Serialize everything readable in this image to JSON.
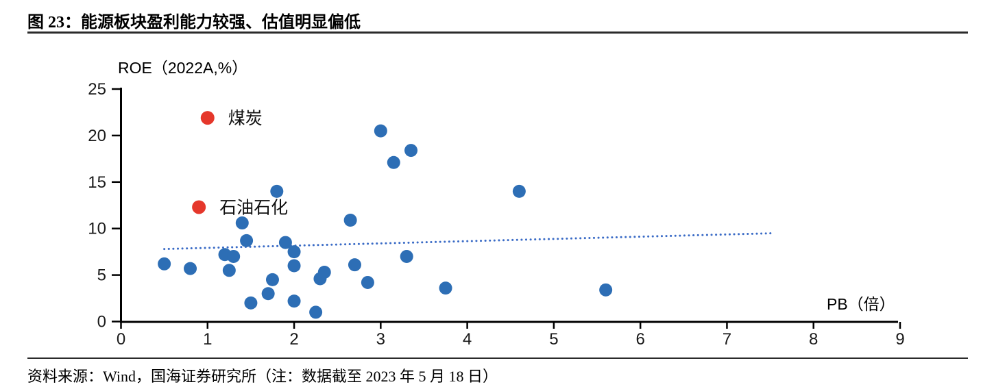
{
  "figure": {
    "title": "图 23：能源板块盈利能力较强、估值明显偏低",
    "source_note": "资料来源：Wind，国海证券研究所（注：数据截至 2023 年 5 月 18 日）"
  },
  "chart_data": {
    "type": "scatter",
    "title": "图 23：能源板块盈利能力较强、估值明显偏低",
    "xlabel": "PB（倍）",
    "ylabel": "ROE（2022A,%）",
    "xlim": [
      0,
      9
    ],
    "ylim": [
      0,
      25
    ],
    "x_ticks": [
      0,
      1,
      2,
      3,
      4,
      5,
      6,
      7,
      8,
      9
    ],
    "y_ticks": [
      0,
      5,
      10,
      15,
      20,
      25
    ],
    "grid": false,
    "legend": "none",
    "point_color": "#2d6eb5",
    "highlight_color": "#e5372b",
    "points": [
      [
        0.5,
        6.2
      ],
      [
        0.8,
        5.7
      ],
      [
        1.2,
        7.2
      ],
      [
        1.25,
        5.5
      ],
      [
        1.3,
        7.0
      ],
      [
        1.4,
        10.6
      ],
      [
        1.45,
        8.7
      ],
      [
        1.5,
        2.0
      ],
      [
        1.7,
        3.0
      ],
      [
        1.75,
        4.5
      ],
      [
        1.8,
        14.0
      ],
      [
        1.9,
        8.5
      ],
      [
        2.0,
        7.5
      ],
      [
        2.0,
        6.0
      ],
      [
        2.0,
        2.2
      ],
      [
        2.25,
        1.0
      ],
      [
        2.3,
        4.6
      ],
      [
        2.35,
        5.3
      ],
      [
        2.65,
        10.9
      ],
      [
        2.7,
        6.1
      ],
      [
        2.85,
        4.2
      ],
      [
        3.0,
        20.5
      ],
      [
        3.15,
        17.1
      ],
      [
        3.3,
        7.0
      ],
      [
        3.35,
        18.4
      ],
      [
        3.75,
        3.6
      ],
      [
        4.6,
        14.0
      ],
      [
        5.6,
        3.4
      ]
    ],
    "highlighted_points": [
      {
        "label": "煤炭",
        "pb": 1.0,
        "roe": 21.9
      },
      {
        "label": "石油石化",
        "pb": 0.9,
        "roe": 12.3
      }
    ],
    "trendline": {
      "style": "dotted",
      "color": "#3a6bc6",
      "from": [
        0.5,
        7.8
      ],
      "to": [
        7.55,
        9.5
      ]
    }
  }
}
